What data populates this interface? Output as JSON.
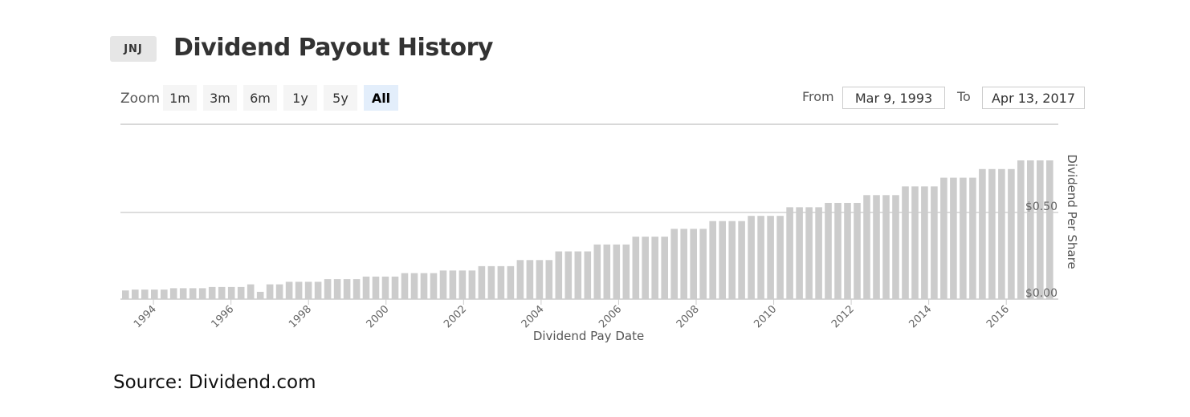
{
  "header": {
    "ticker": "JNJ",
    "title": "Dividend Payout History"
  },
  "zoom": {
    "label": "Zoom",
    "buttons": [
      "1m",
      "3m",
      "6m",
      "1y",
      "5y",
      "All"
    ],
    "active": "All"
  },
  "range": {
    "from_label": "From",
    "from_value": "Mar 9, 1993",
    "to_label": "To",
    "to_value": "Apr 13, 2017"
  },
  "chart_data": {
    "type": "bar",
    "xlabel": "Dividend Pay Date",
    "ylabel": "Dividend Per Share",
    "ylim": [
      0,
      0.8
    ],
    "y_ticks": [
      {
        "value": 0,
        "label": "$0.00"
      },
      {
        "value": 0.5,
        "label": "$0.50"
      }
    ],
    "x_ticks": [
      "1994",
      "1996",
      "1998",
      "2000",
      "2002",
      "2004",
      "2006",
      "2008",
      "2010",
      "2012",
      "2014",
      "2016"
    ],
    "x_start_year": 1993.19,
    "x_end_year": 2017.28,
    "bar_color": "#cccccc",
    "grid": true,
    "series": [
      {
        "values": [
          0.05,
          0.055,
          0.055,
          0.055,
          0.055,
          0.063,
          0.063,
          0.063,
          0.063,
          0.07,
          0.07,
          0.07,
          0.07,
          0.085,
          0.042,
          0.085,
          0.085,
          0.1,
          0.1,
          0.1,
          0.1,
          0.115,
          0.115,
          0.115,
          0.115,
          0.13,
          0.13,
          0.13,
          0.13,
          0.15,
          0.15,
          0.15,
          0.15,
          0.165,
          0.165,
          0.165,
          0.165,
          0.19,
          0.19,
          0.19,
          0.19,
          0.225,
          0.225,
          0.225,
          0.225,
          0.275,
          0.275,
          0.275,
          0.275,
          0.315,
          0.315,
          0.315,
          0.315,
          0.36,
          0.36,
          0.36,
          0.36,
          0.405,
          0.405,
          0.405,
          0.405,
          0.45,
          0.45,
          0.45,
          0.45,
          0.48,
          0.48,
          0.48,
          0.48,
          0.53,
          0.53,
          0.53,
          0.53,
          0.555,
          0.555,
          0.555,
          0.555,
          0.6,
          0.6,
          0.6,
          0.6,
          0.65,
          0.65,
          0.65,
          0.65,
          0.7,
          0.7,
          0.7,
          0.7,
          0.75,
          0.75,
          0.75,
          0.75,
          0.8,
          0.8,
          0.8,
          0.8
        ]
      }
    ]
  },
  "footer": {
    "source": "Source: Dividend.com"
  }
}
